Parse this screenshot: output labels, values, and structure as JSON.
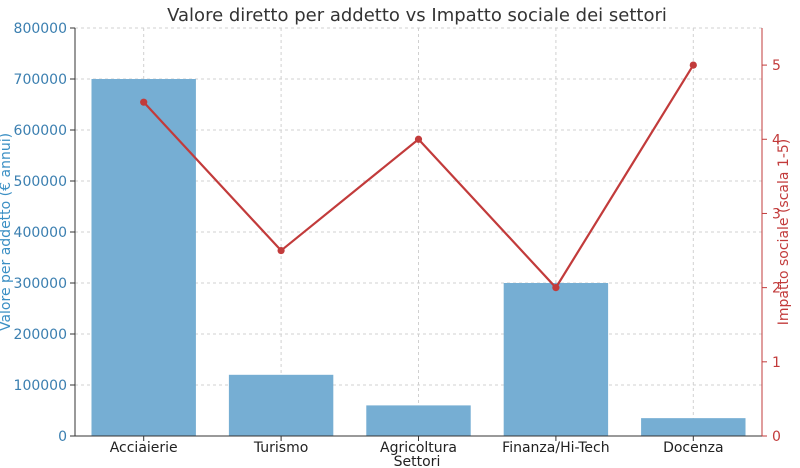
{
  "chart_data": {
    "type": "bar",
    "title": "Valore diretto per addetto vs Impatto sociale dei settori",
    "xlabel": "Settori",
    "ylabel": "Valore per addetto (€ annui)",
    "y2label": "Impatto sociale (scala 1-5)",
    "categories": [
      "Acciaierie",
      "Turismo",
      "Agricoltura",
      "Finanza/Hi-Tech",
      "Docenza"
    ],
    "ylim": [
      0,
      800000
    ],
    "y2lim": [
      0,
      5.5
    ],
    "yticks": [
      "0",
      "100000",
      "200000",
      "300000",
      "400000",
      "500000",
      "600000",
      "700000",
      "800000"
    ],
    "y2ticks": [
      "0",
      "1",
      "2",
      "3",
      "4",
      "5"
    ],
    "grid": true,
    "series": [
      {
        "kind": "bar",
        "axis": "left",
        "values": [
          700000,
          120000,
          60000,
          300000,
          35000
        ],
        "color": "#76aed3"
      },
      {
        "kind": "line",
        "axis": "right",
        "values": [
          4.5,
          2.5,
          4.0,
          2.0,
          5.0
        ],
        "color": "#c23b3b"
      }
    ]
  }
}
